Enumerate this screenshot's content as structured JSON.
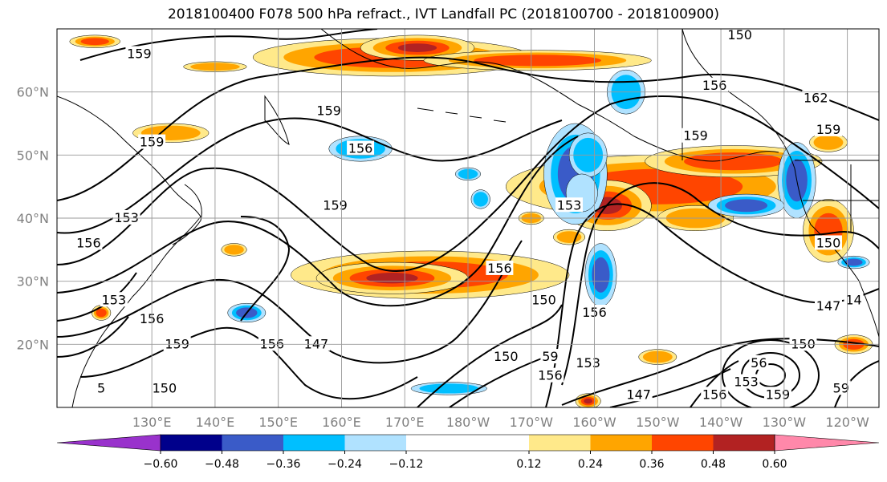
{
  "title": "2018100400 F078 500 hPa refract., IVT Landfall PC (2018100700 - 2018100900)",
  "map": {
    "lat_labels": [
      "60°N",
      "50°N",
      "40°N",
      "30°N",
      "20°N"
    ],
    "lat_values": [
      60,
      50,
      40,
      30,
      20
    ],
    "lon_labels": [
      "130°E",
      "140°E",
      "150°E",
      "160°E",
      "170°E",
      "180°W",
      "170°W",
      "160°W",
      "150°W",
      "140°W",
      "130°W",
      "120°W"
    ],
    "lon_values": [
      130,
      140,
      150,
      160,
      170,
      180,
      190,
      200,
      210,
      220,
      230,
      240
    ],
    "contour_labels": [
      {
        "text": "159",
        "lon": 128,
        "lat": 66
      },
      {
        "text": "150",
        "lon": 223,
        "lat": 69
      },
      {
        "text": "156",
        "lon": 219,
        "lat": 61
      },
      {
        "text": "162",
        "lon": 235,
        "lat": 59
      },
      {
        "text": "159",
        "lon": 237,
        "lat": 54
      },
      {
        "text": "159",
        "lon": 158,
        "lat": 57
      },
      {
        "text": "156",
        "lon": 163,
        "lat": 51
      },
      {
        "text": "159",
        "lon": 130,
        "lat": 52
      },
      {
        "text": "159",
        "lon": 216,
        "lat": 53
      },
      {
        "text": "159",
        "lon": 159,
        "lat": 42
      },
      {
        "text": "153",
        "lon": 126,
        "lat": 40
      },
      {
        "text": "156",
        "lon": 120,
        "lat": 36
      },
      {
        "text": "153",
        "lon": 196,
        "lat": 42
      },
      {
        "text": "156",
        "lon": 185,
        "lat": 32
      },
      {
        "text": "150",
        "lon": 237,
        "lat": 36
      },
      {
        "text": "14",
        "lon": 241,
        "lat": 27
      },
      {
        "text": "153",
        "lon": 124,
        "lat": 27
      },
      {
        "text": "156",
        "lon": 130,
        "lat": 24
      },
      {
        "text": "159",
        "lon": 134,
        "lat": 20
      },
      {
        "text": "156",
        "lon": 149,
        "lat": 20
      },
      {
        "text": "147",
        "lon": 156,
        "lat": 20
      },
      {
        "text": "150",
        "lon": 192,
        "lat": 27
      },
      {
        "text": "156",
        "lon": 200,
        "lat": 25
      },
      {
        "text": "147",
        "lon": 237,
        "lat": 26
      },
      {
        "text": "150",
        "lon": 186,
        "lat": 18
      },
      {
        "text": "59",
        "lon": 193,
        "lat": 18
      },
      {
        "text": "153",
        "lon": 199,
        "lat": 17
      },
      {
        "text": "156",
        "lon": 193,
        "lat": 15
      },
      {
        "text": "150",
        "lon": 233,
        "lat": 20
      },
      {
        "text": "56",
        "lon": 226,
        "lat": 17
      },
      {
        "text": "153",
        "lon": 224,
        "lat": 14
      },
      {
        "text": "147",
        "lon": 207,
        "lat": 12
      },
      {
        "text": "156",
        "lon": 219,
        "lat": 12
      },
      {
        "text": "159",
        "lon": 229,
        "lat": 12
      },
      {
        "text": "59",
        "lon": 239,
        "lat": 13
      },
      {
        "text": "150",
        "lon": 132,
        "lat": 13
      },
      {
        "text": "5",
        "lon": 122,
        "lat": 13
      }
    ]
  },
  "colorbar": {
    "tick_labels": [
      "−0.60",
      "−0.48",
      "−0.36",
      "−0.24",
      "−0.12",
      "0.12",
      "0.24",
      "0.36",
      "0.48",
      "0.60"
    ],
    "tick_values": [
      -0.6,
      -0.48,
      -0.36,
      -0.24,
      -0.12,
      0.12,
      0.24,
      0.36,
      0.48,
      0.6
    ],
    "colors": [
      "#9932cc",
      "#00008b",
      "#3a5bc8",
      "#00bfff",
      "#b0e2ff",
      "#ffffff",
      "#ffe98a",
      "#ffa500",
      "#ff4500",
      "#b22222",
      "#ff88aa"
    ]
  },
  "shading": {
    "positive": [
      {
        "lon": 133,
        "lat": 53.5,
        "rx": 6,
        "ry": 1.5,
        "level": 2
      },
      {
        "lon": 168,
        "lat": 65.5,
        "rx": 22,
        "ry": 3,
        "level": 3
      },
      {
        "lon": 172,
        "lat": 67,
        "rx": 9,
        "ry": 2,
        "level": 4
      },
      {
        "lon": 191,
        "lat": 65,
        "rx": 18,
        "ry": 1.6,
        "level": 3
      },
      {
        "lon": 121,
        "lat": 68,
        "rx": 4,
        "ry": 1,
        "level": 3
      },
      {
        "lon": 140,
        "lat": 64,
        "rx": 5,
        "ry": 0.8,
        "level": 2
      },
      {
        "lon": 210,
        "lat": 45,
        "rx": 24,
        "ry": 5,
        "level": 3
      },
      {
        "lon": 202,
        "lat": 42,
        "rx": 7,
        "ry": 4,
        "level": 4
      },
      {
        "lon": 222,
        "lat": 49,
        "rx": 14,
        "ry": 2.5,
        "level": 3
      },
      {
        "lon": 216,
        "lat": 40,
        "rx": 6,
        "ry": 2,
        "level": 2
      },
      {
        "lon": 174,
        "lat": 31,
        "rx": 22,
        "ry": 3.8,
        "level": 3
      },
      {
        "lon": 168,
        "lat": 30.5,
        "rx": 12,
        "ry": 2.5,
        "level": 4
      },
      {
        "lon": 237,
        "lat": 38,
        "rx": 4,
        "ry": 5,
        "level": 3
      },
      {
        "lon": 237,
        "lat": 52,
        "rx": 3,
        "ry": 1.5,
        "level": 2
      },
      {
        "lon": 199,
        "lat": 11,
        "rx": 2,
        "ry": 1.2,
        "level": 4
      },
      {
        "lon": 241,
        "lat": 20,
        "rx": 3,
        "ry": 1.5,
        "level": 3
      },
      {
        "lon": 122,
        "lat": 25,
        "rx": 1.5,
        "ry": 1.2,
        "level": 3
      },
      {
        "lon": 143,
        "lat": 35,
        "rx": 2,
        "ry": 1,
        "level": 2
      },
      {
        "lon": 196,
        "lat": 37,
        "rx": 2.5,
        "ry": 1.2,
        "level": 2
      },
      {
        "lon": 210,
        "lat": 18,
        "rx": 3,
        "ry": 1.2,
        "level": 2
      },
      {
        "lon": 190,
        "lat": 40,
        "rx": 2,
        "ry": 1,
        "level": 2
      }
    ],
    "negative": [
      {
        "lon": 197,
        "lat": 47,
        "rx": 5,
        "ry": 8,
        "level": 3
      },
      {
        "lon": 199,
        "lat": 50,
        "rx": 3,
        "ry": 3.5,
        "level": 2
      },
      {
        "lon": 198,
        "lat": 44,
        "rx": 2.5,
        "ry": 3,
        "level": 1
      },
      {
        "lon": 201,
        "lat": 31,
        "rx": 2.5,
        "ry": 5,
        "level": 3
      },
      {
        "lon": 163,
        "lat": 51,
        "rx": 5,
        "ry": 2,
        "level": 2
      },
      {
        "lon": 205,
        "lat": 60,
        "rx": 3,
        "ry": 3.5,
        "level": 2
      },
      {
        "lon": 232,
        "lat": 46,
        "rx": 3,
        "ry": 6,
        "level": 3
      },
      {
        "lon": 224,
        "lat": 42,
        "rx": 6,
        "ry": 1.8,
        "level": 3
      },
      {
        "lon": 145,
        "lat": 25,
        "rx": 3,
        "ry": 1.5,
        "level": 3
      },
      {
        "lon": 180,
        "lat": 47,
        "rx": 2,
        "ry": 1,
        "level": 2
      },
      {
        "lon": 241,
        "lat": 33,
        "rx": 2.5,
        "ry": 1,
        "level": 3
      },
      {
        "lon": 177,
        "lat": 13,
        "rx": 6,
        "ry": 1,
        "level": 2
      },
      {
        "lon": 182,
        "lat": 43,
        "rx": 1.5,
        "ry": 1.5,
        "level": 2
      }
    ]
  }
}
